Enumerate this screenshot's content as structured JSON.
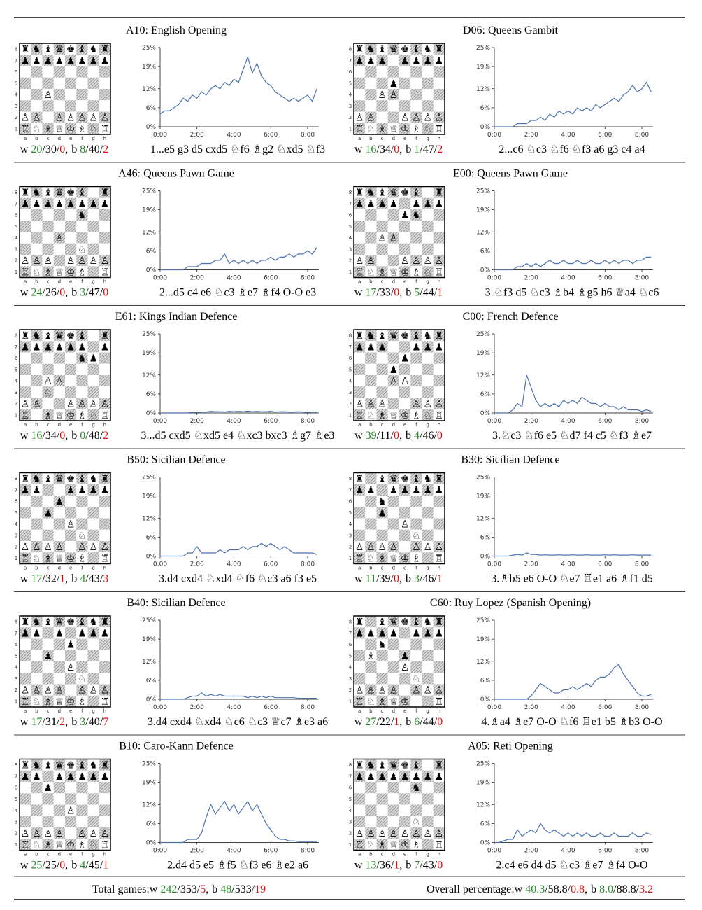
{
  "chart_data": [
    {
      "type": "line",
      "title": "A10: English Opening",
      "values": [
        4,
        5,
        5,
        6,
        7,
        9,
        8,
        10,
        9,
        11,
        10,
        12,
        13,
        12,
        14,
        13,
        15,
        14,
        18,
        22,
        17,
        20,
        16,
        14,
        13,
        11,
        10,
        9,
        8,
        9,
        8,
        9,
        10,
        8,
        12
      ],
      "board": [
        "♜♞♝♛♚♝♞♜",
        "♟♟♟♟♟♟♟♟",
        "        ",
        "        ",
        "  ♙     ",
        "        ",
        "♙♙ ♙♙♙♙♙",
        "♖♘♗♕♔♗♘♖"
      ],
      "stats": [
        {
          "side": "w",
          "values": [
            20,
            30,
            0
          ]
        },
        {
          "side": "b",
          "values": [
            8,
            40,
            2
          ]
        }
      ],
      "moves": "1...e5 g3 d5 cxd5 ♘f6 ♗g2 ♘xd5 ♘f3"
    },
    {
      "type": "line",
      "title": "D06: Queens Gambit",
      "values": [
        0,
        0,
        0,
        0,
        0,
        1,
        1,
        1,
        2,
        2,
        3,
        2,
        4,
        3,
        5,
        4,
        5,
        4,
        6,
        5,
        6,
        5,
        7,
        6,
        7,
        8,
        9,
        8,
        10,
        11,
        13,
        11,
        12,
        14,
        11
      ],
      "board": [
        "♜♞♝♛♚♝♞♜",
        "♟♟♟ ♟♟♟♟",
        "        ",
        "   ♟    ",
        "  ♙♙    ",
        "        ",
        "♙♙  ♙♙♙♙",
        "♖♘♗♕♔♗♘♖"
      ],
      "stats": [
        {
          "side": "w",
          "values": [
            16,
            34,
            0
          ]
        },
        {
          "side": "b",
          "values": [
            1,
            47,
            2
          ]
        }
      ],
      "moves": "2...c6 ♘c3 ♘f6 ♘f3 a6 g3 c4 a4"
    },
    {
      "type": "line",
      "title": "A46: Queens Pawn Game",
      "values": [
        0,
        0,
        0,
        0,
        0,
        0,
        1,
        1,
        1,
        2,
        2,
        2,
        3,
        3,
        5,
        2,
        3,
        2,
        3,
        2,
        3,
        2,
        3,
        3,
        4,
        3,
        4,
        4,
        5,
        4,
        5,
        5,
        6,
        5,
        7
      ],
      "board": [
        "♜♞♝♛♚♝ ♜",
        "♟♟♟♟♟♟♟♟",
        "     ♞  ",
        "        ",
        "   ♙    ",
        "     ♘  ",
        "♙♙♙ ♙♙♙♙",
        "♖♘♗♕♔♗ ♖"
      ],
      "stats": [
        {
          "side": "w",
          "values": [
            24,
            26,
            0
          ]
        },
        {
          "side": "b",
          "values": [
            3,
            47,
            0
          ]
        }
      ],
      "moves": "2...d5 c4 e6 ♘c3 ♗e7 ♗f4 O-O e3"
    },
    {
      "type": "line",
      "title": "E00: Queens Pawn Game",
      "values": [
        0,
        0,
        0,
        0,
        0,
        1,
        1,
        2,
        1,
        2,
        1,
        2,
        3,
        2,
        2,
        3,
        2,
        2,
        3,
        2,
        2,
        3,
        2,
        2,
        3,
        2,
        3,
        2,
        3,
        3,
        2,
        3,
        3,
        4,
        4
      ],
      "board": [
        "♜♞♝♛♚♝ ♜",
        "♟♟♟♟ ♟♟♟",
        "    ♟♞  ",
        "        ",
        "  ♙♙    ",
        "        ",
        "♙♙  ♙♙♙♙",
        "♖♘♗♕♔♗♘♖"
      ],
      "stats": [
        {
          "side": "w",
          "values": [
            17,
            33,
            0
          ]
        },
        {
          "side": "b",
          "values": [
            5,
            44,
            1
          ]
        }
      ],
      "moves": "3.♘f3 d5 ♘c3 ♗b4 ♗g5 h6 ♕a4 ♘c6"
    },
    {
      "type": "line",
      "title": "E61: Kings Indian Defence",
      "values": [
        0,
        0,
        0,
        0,
        0,
        0,
        0,
        0.3,
        0.2,
        0.3,
        0.3,
        0.5,
        0.4,
        0.4,
        0.3,
        0.5,
        0.4,
        0.5,
        0.4,
        0.6,
        0.4,
        0.5,
        0.4,
        0.4,
        0.5,
        0.3,
        0.4,
        0.4,
        0.3,
        0.3,
        0.4,
        0.3,
        0.2,
        0.3,
        0.3
      ],
      "board": [
        "♜♞♝♛♚♝ ♜",
        "♟♟♟♟♟♟ ♟",
        "     ♞♟ ",
        "        ",
        "  ♙♙    ",
        "  ♘     ",
        "♙♙  ♙♙♙♙",
        "♖ ♗♕♔♗♘♖"
      ],
      "stats": [
        {
          "side": "w",
          "values": [
            16,
            34,
            0
          ]
        },
        {
          "side": "b",
          "values": [
            0,
            48,
            2
          ]
        }
      ],
      "moves": "3...d5 cxd5 ♘xd5 e4 ♘xc3 bxc3 ♗g7 ♗e3"
    },
    {
      "type": "line",
      "title": "C00: French Defence",
      "values": [
        0,
        0,
        0,
        0,
        1,
        3,
        2,
        12,
        8,
        4,
        2,
        3,
        2,
        3,
        2,
        4,
        3,
        4,
        3,
        5,
        4,
        3,
        3,
        2,
        3,
        2,
        2,
        1,
        2,
        1,
        1,
        1,
        0.5,
        1,
        0.5
      ],
      "board": [
        "♜♞♝♛♚♝♞♜",
        "♟♟♟  ♟♟♟",
        "    ♟   ",
        "   ♟    ",
        "   ♙♙   ",
        "        ",
        "♙♙♙  ♙♙♙",
        "♖♘♗♕♔♗♘♖"
      ],
      "stats": [
        {
          "side": "w",
          "values": [
            39,
            11,
            0
          ]
        },
        {
          "side": "b",
          "values": [
            4,
            46,
            0
          ]
        }
      ],
      "moves": "3.♘c3 ♘f6 e5 ♘d7 f4 c5 ♘f3 ♗e7"
    },
    {
      "type": "line",
      "title": "B50: Sicilian Defence",
      "values": [
        0,
        0,
        0,
        0,
        0,
        0,
        1,
        1,
        3,
        1,
        1,
        1,
        1,
        2,
        1,
        2,
        2,
        2,
        3,
        2,
        3,
        3,
        4,
        3,
        4,
        3,
        2,
        3,
        2,
        1,
        1,
        1,
        1,
        1,
        0.5
      ],
      "board": [
        "♜♞♝♛♚♝♞♜",
        "♟♟  ♟♟♟♟",
        "   ♟    ",
        "  ♟     ",
        "    ♙   ",
        "     ♘  ",
        "♙♙♙♙ ♙♙♙",
        "♖♘♗♕♔♗ ♖"
      ],
      "stats": [
        {
          "side": "w",
          "values": [
            17,
            32,
            1
          ]
        },
        {
          "side": "b",
          "values": [
            4,
            43,
            3
          ]
        }
      ],
      "moves": "3.d4 cxd4 ♘xd4 ♘f6 ♘c3 a6 f3 e5"
    },
    {
      "type": "line",
      "title": "B30: Sicilian Defence",
      "values": [
        0,
        0,
        0,
        0,
        0.3,
        0.5,
        0.3,
        1,
        0.5,
        0.5,
        0.3,
        0.4,
        0.3,
        0.3,
        0.4,
        0.3,
        0.3,
        0.4,
        0.3,
        0.3,
        0.4,
        0.3,
        0.3,
        0.3,
        0.4,
        0.3,
        0.4,
        0.3,
        0.3,
        0.3,
        0.4,
        0.3,
        0.3,
        0.3,
        0.3
      ],
      "board": [
        "♜ ♝♛♚♝♞♜",
        "♟♟ ♟♟♟♟♟",
        "  ♞     ",
        "  ♟     ",
        "    ♙   ",
        "     ♘  ",
        "♙♙♙♙ ♙♙♙",
        "♖♘♗♕♔♗ ♖"
      ],
      "stats": [
        {
          "side": "w",
          "values": [
            11,
            39,
            0
          ]
        },
        {
          "side": "b",
          "values": [
            3,
            46,
            1
          ]
        }
      ],
      "moves": "3.♗b5 e6 O-O ♘e7 ♖e1 a6 ♗f1 d5"
    },
    {
      "type": "line",
      "title": "B40: Sicilian Defence",
      "values": [
        0,
        0,
        0,
        0,
        0,
        0,
        0.5,
        1,
        1,
        2,
        1,
        1.5,
        1,
        1.5,
        1,
        1,
        1,
        1,
        1,
        0.5,
        1,
        0.5,
        1,
        0.5,
        1,
        0.5,
        0.5,
        0.5,
        0.5,
        0.5,
        0.3,
        0.3,
        0.3,
        0.3,
        0.3
      ],
      "board": [
        "♜♞♝♛♚♝♞♜",
        "♟♟ ♟ ♟♟♟",
        "    ♟   ",
        "  ♟     ",
        "    ♙   ",
        "     ♘  ",
        "♙♙♙♙ ♙♙♙",
        "♖♘♗♕♔♗ ♖"
      ],
      "stats": [
        {
          "side": "w",
          "values": [
            17,
            31,
            2
          ]
        },
        {
          "side": "b",
          "values": [
            3,
            40,
            7
          ]
        }
      ],
      "moves": "3.d4 cxd4 ♘xd4 ♘c6 ♘c3 ♕c7 ♗e3 a6"
    },
    {
      "type": "line",
      "title": "C60: Ruy Lopez (Spanish Opening)",
      "values": [
        0,
        0,
        0,
        0,
        0,
        0,
        0,
        0,
        1,
        3,
        5,
        4,
        3,
        2,
        2,
        3,
        3,
        4,
        3,
        4,
        5,
        4,
        6,
        7,
        7,
        8,
        10,
        11,
        8,
        6,
        4,
        2,
        1,
        1,
        1.5
      ],
      "board": [
        "♜ ♝♛♚♝♞♜",
        "♟♟♟♟ ♟♟♟",
        "  ♞     ",
        " ♗  ♟   ",
        "    ♙   ",
        "     ♘  ",
        "♙♙♙♙ ♙♙♙",
        "♖♘♗♕♔  ♖"
      ],
      "stats": [
        {
          "side": "w",
          "values": [
            27,
            22,
            1
          ]
        },
        {
          "side": "b",
          "values": [
            6,
            44,
            0
          ]
        }
      ],
      "moves": "4.♗a4 ♗e7 O-O ♘f6 ♖e1 b5 ♗b3 O-O"
    },
    {
      "type": "line",
      "title": "B10: Caro-Kann Defence",
      "values": [
        0,
        0,
        0,
        0,
        0,
        0,
        1,
        1,
        1,
        3,
        8,
        12,
        9,
        11,
        13,
        10,
        12,
        9,
        11,
        13,
        10,
        12,
        9,
        6,
        4,
        2,
        1,
        1,
        0.5,
        0.5,
        0.3,
        0.3,
        0.3,
        0.3,
        0.3
      ],
      "board": [
        "♜♞♝♛♚♝♞♜",
        "♟♟ ♟♟♟♟♟",
        "  ♟     ",
        "        ",
        "    ♙   ",
        "        ",
        "♙♙♙♙ ♙♙♙",
        "♖♘♗♕♔♗♘♖"
      ],
      "stats": [
        {
          "side": "w",
          "values": [
            25,
            25,
            0
          ]
        },
        {
          "side": "b",
          "values": [
            4,
            45,
            1
          ]
        }
      ],
      "moves": "2.d4 d5 e5 ♗f5 ♘f3 e6 ♗e2 a6"
    },
    {
      "type": "line",
      "title": "A05: Reti Opening",
      "values": [
        0,
        0,
        0.5,
        1,
        1,
        4,
        2,
        3,
        4,
        3,
        6,
        4,
        3,
        4,
        3,
        2,
        3,
        2,
        3,
        2,
        3,
        2,
        2,
        3,
        2,
        2,
        3,
        2,
        2,
        2,
        3,
        2,
        2,
        3,
        2.5
      ],
      "board": [
        "♜♞♝♛♚♝ ♜",
        "♟♟♟♟♟♟♟♟",
        "     ♞  ",
        "        ",
        "        ",
        "     ♘  ",
        "♙♙♙♙♙♙♙♙",
        "♖♘♗♕♔♗ ♖"
      ],
      "stats": [
        {
          "side": "w",
          "values": [
            13,
            36,
            1
          ]
        },
        {
          "side": "b",
          "values": [
            7,
            43,
            0
          ]
        }
      ],
      "moves": "2.c4 e6 d4 d5 ♘c3 ♗e7 ♗f4 O-O"
    }
  ],
  "axes": {
    "x": [
      0,
      0.25,
      0.5,
      0.75,
      1,
      1.25,
      1.5,
      1.75,
      2,
      2.25,
      2.5,
      2.75,
      3,
      3.25,
      3.5,
      3.75,
      4,
      4.25,
      4.5,
      4.75,
      5,
      5.25,
      5.5,
      5.75,
      6,
      6.25,
      6.5,
      6.75,
      7,
      7.25,
      7.5,
      7.75,
      8,
      8.25,
      8.5
    ],
    "xlim": [
      0,
      8.6
    ],
    "xticks": [
      {
        "value": 0,
        "label": "0:00"
      },
      {
        "value": 2,
        "label": "2:00"
      },
      {
        "value": 4,
        "label": "4:00"
      },
      {
        "value": 6,
        "label": "6:00"
      },
      {
        "value": 8,
        "label": "8:00"
      }
    ],
    "ylim": [
      0,
      25
    ],
    "yticks": [
      {
        "value": 0,
        "label": "0%"
      },
      {
        "value": 6,
        "label": "6%"
      },
      {
        "value": 12,
        "label": "12%"
      },
      {
        "value": 19,
        "label": "19%"
      },
      {
        "value": 25,
        "label": "25%"
      }
    ],
    "color": "#4c72b0"
  },
  "board_labels": {
    "files": [
      "a",
      "b",
      "c",
      "d",
      "e",
      "f",
      "g",
      "h"
    ],
    "ranks": [
      "8",
      "7",
      "6",
      "5",
      "4",
      "3",
      "2",
      "1"
    ]
  },
  "separators": {
    "value": "/",
    "group": ","
  },
  "stat_colors": [
    "#2a8a2a",
    "#000000",
    "#dd1111"
  ],
  "footer": {
    "totals": {
      "label": "Total games:",
      "stats": [
        {
          "side": "w",
          "values": [
            242,
            353,
            5
          ]
        },
        {
          "side": "b",
          "values": [
            48,
            533,
            19
          ]
        }
      ]
    },
    "percentages": {
      "label": "Overall percentage:",
      "stats": [
        {
          "side": "w",
          "values": [
            40.3,
            58.8,
            0.8
          ]
        },
        {
          "side": "b",
          "values": [
            8,
            88.8,
            3.2
          ],
          "value_labels": [
            "8.0",
            "88.8",
            "3.2"
          ]
        }
      ]
    }
  }
}
